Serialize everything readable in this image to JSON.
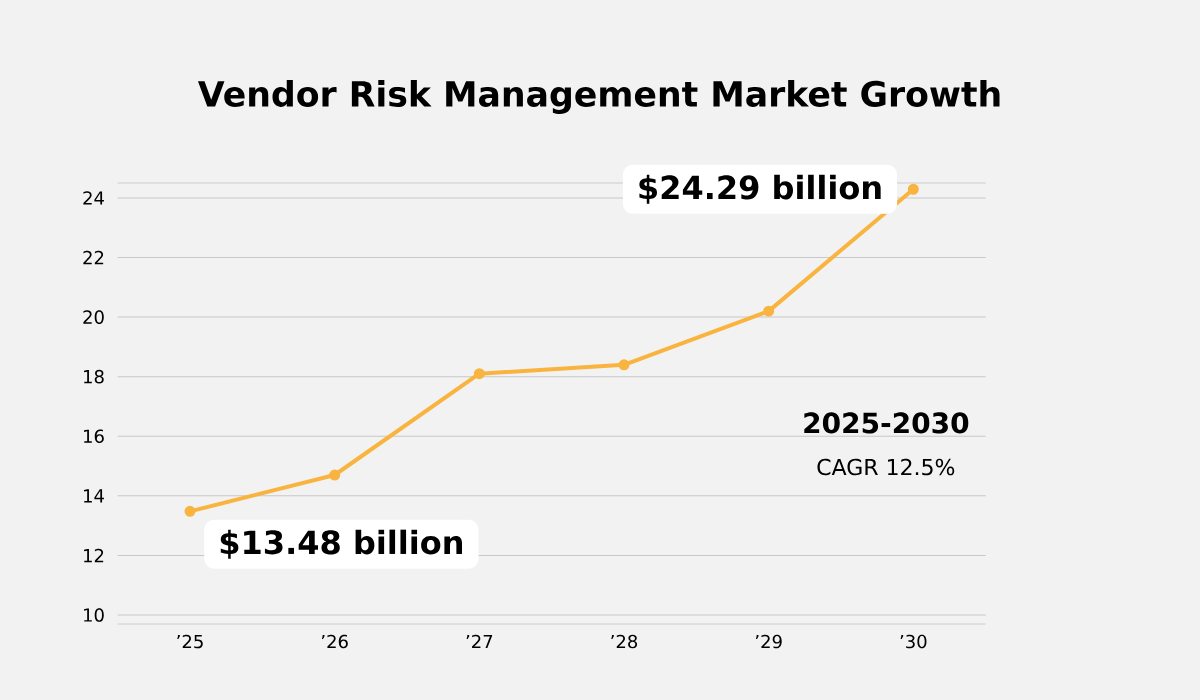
{
  "chart_data": {
    "type": "line",
    "title": "Vendor Risk Management Market Growth",
    "categories": [
      "’25",
      "’26",
      "’27",
      "’28",
      "’29",
      "’30"
    ],
    "series": [
      {
        "color": "#f9b43f",
        "values": [
          13.48,
          14.7,
          18.1,
          18.4,
          20.2,
          24.29
        ],
        "value_labels": [
          "$13.48 billion",
          null,
          null,
          null,
          null,
          "$24.29 billion"
        ]
      }
    ],
    "ylim": [
      9.7,
      24.5
    ],
    "yticks": [
      10,
      12,
      14,
      16,
      18,
      20,
      22,
      24
    ],
    "grid": "y",
    "marker": "circle",
    "line_style": "solid",
    "annotations": [
      "2025-2030",
      "CAGR 12.5%"
    ]
  }
}
